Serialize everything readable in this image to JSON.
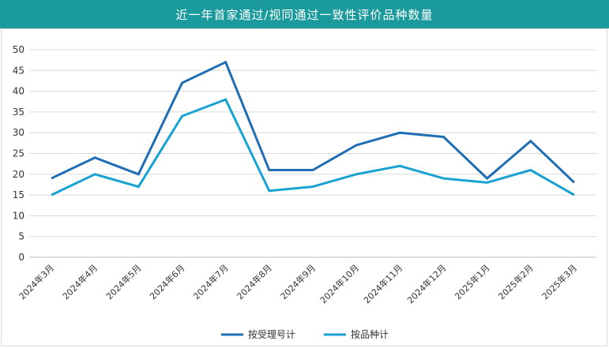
{
  "chart_data": {
    "type": "line",
    "title": "近一年首家通过/视同通过一致性评价品种数量",
    "categories": [
      "2024年3月",
      "2024年4月",
      "2024年5月",
      "2024年6月",
      "2024年7月",
      "2024年8月",
      "2024年9月",
      "2024年10月",
      "2024年11月",
      "2024年12月",
      "2025年1月",
      "2025年2月",
      "2025年3月"
    ],
    "series": [
      {
        "name": "按受理号计",
        "color": "#1f6db5",
        "values": [
          19,
          24,
          20,
          42,
          47,
          21,
          21,
          27,
          30,
          29,
          19,
          28,
          18
        ]
      },
      {
        "name": "按品种计",
        "color": "#17a2d1",
        "values": [
          15,
          20,
          17,
          34,
          38,
          16,
          17,
          20,
          22,
          19,
          18,
          21,
          15
        ]
      }
    ],
    "ylim": [
      0,
      50
    ],
    "yticks": [
      0,
      5,
      10,
      15,
      20,
      25,
      30,
      35,
      40,
      45,
      50
    ],
    "grid": true,
    "legend": "bottom"
  }
}
